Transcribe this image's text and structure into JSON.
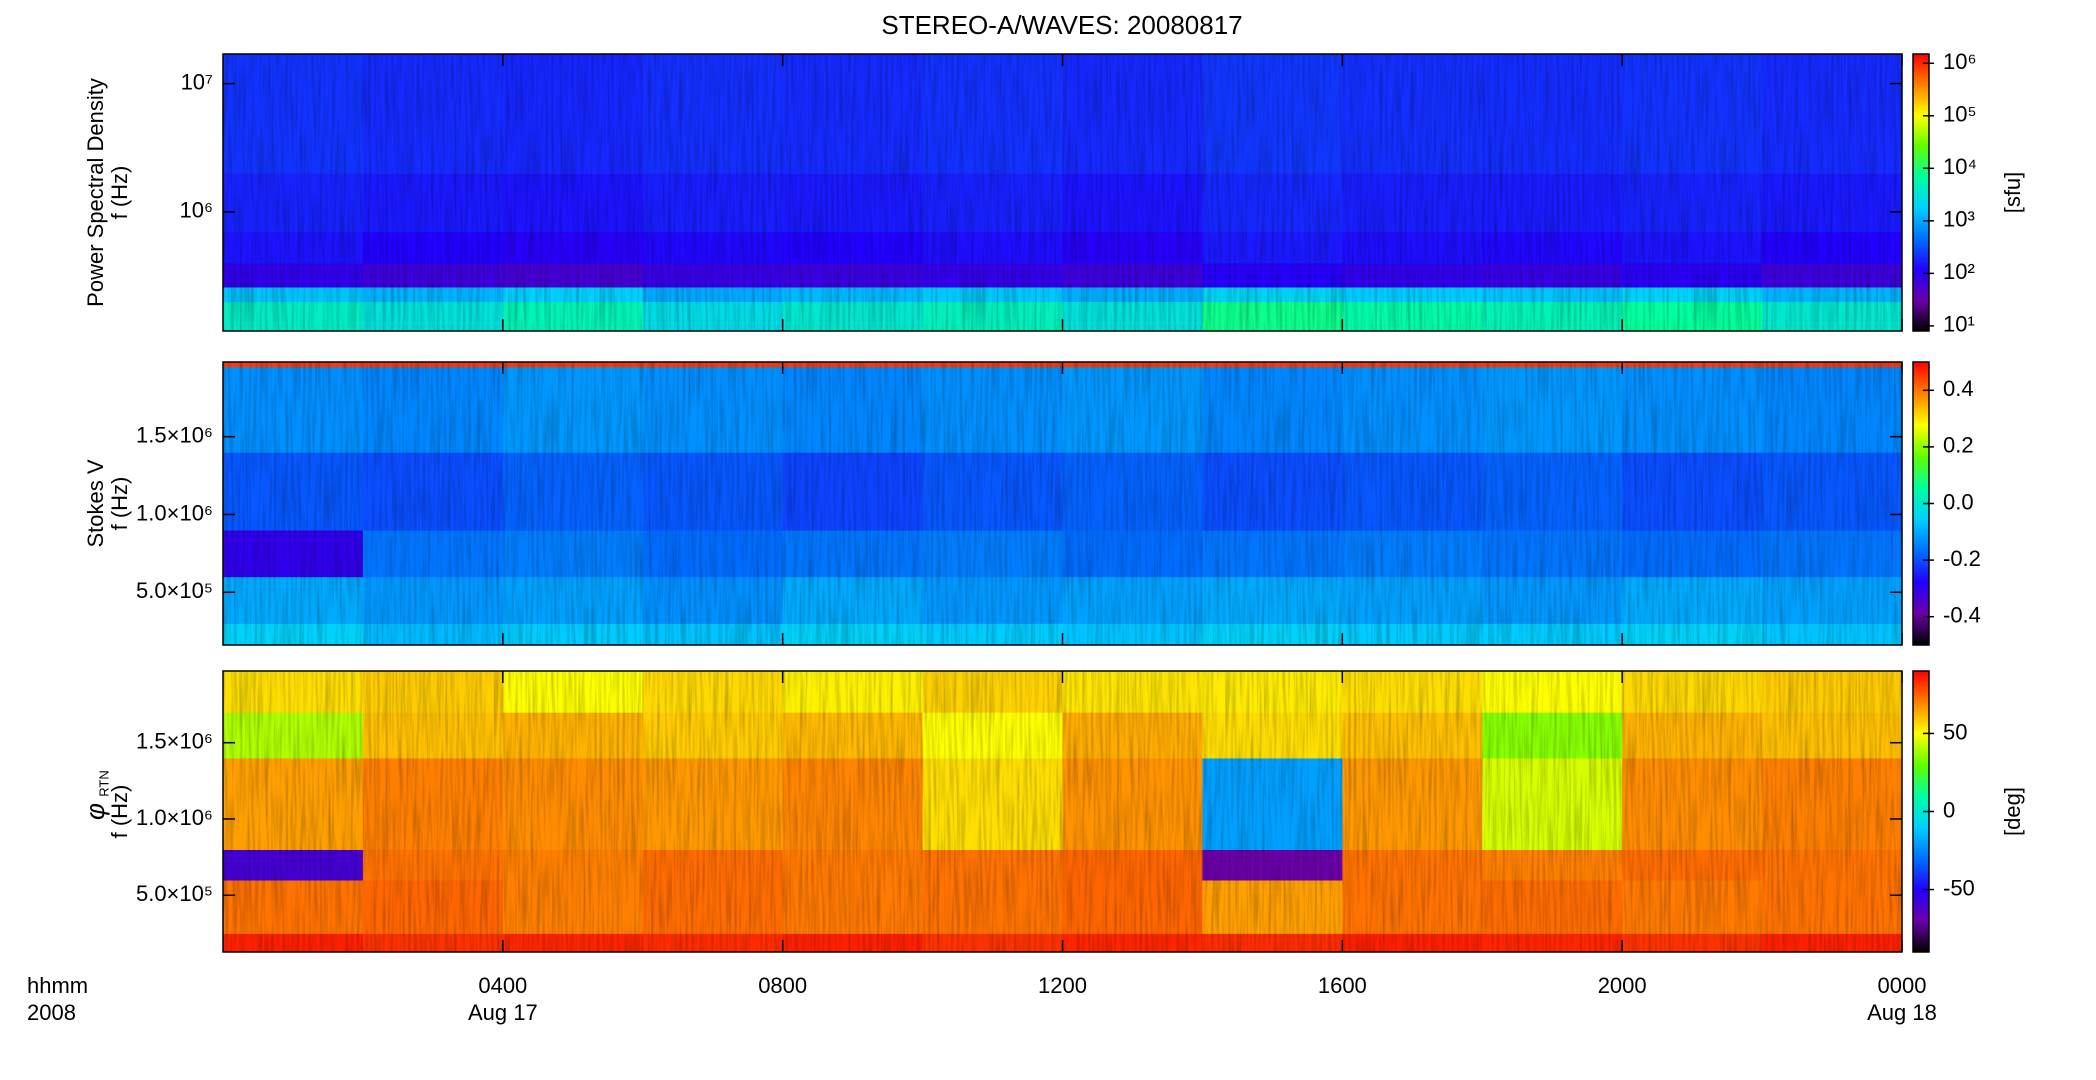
{
  "chart_data": [
    {
      "type": "heatmap",
      "title": "STEREO-A/WAVES: 20080817",
      "ylabel": [
        "Power Spectral Density",
        "f (Hz)"
      ],
      "xlim": [
        0,
        24
      ],
      "xticks": [
        4,
        8,
        12,
        16,
        20,
        24
      ],
      "yscale": "log",
      "ylim": [
        118000,
        17000000
      ],
      "yticks": [
        {
          "value": 1000000,
          "label": "10⁶"
        },
        {
          "value": 10000000,
          "label": "10⁷"
        }
      ],
      "xbins": [
        0,
        2,
        4,
        6,
        8,
        10,
        12,
        14,
        16,
        18,
        20,
        22,
        24
      ],
      "ybins": [
        118000,
        200000,
        260000,
        400000,
        700000,
        2000000,
        17000000
      ],
      "z": [
        [
          4000,
          3000,
          5000,
          2500,
          3500,
          4500,
          3000,
          8000,
          6000,
          5000,
          7000,
          3500
        ],
        [
          1500,
          1200,
          1800,
          1000,
          1300,
          1600,
          1100,
          2000,
          1700,
          1500,
          1900,
          1200
        ],
        [
          90,
          70,
          60,
          80,
          75,
          85,
          70,
          110,
          90,
          80,
          100,
          70
        ],
        [
          150,
          120,
          110,
          130,
          120,
          140,
          110,
          160,
          140,
          130,
          150,
          120
        ],
        [
          180,
          160,
          150,
          170,
          160,
          175,
          150,
          190,
          170,
          165,
          180,
          160
        ],
        [
          220,
          200,
          190,
          210,
          200,
          215,
          195,
          230,
          210,
          205,
          220,
          200
        ]
      ],
      "zscale": "log",
      "zlim": [
        8,
        1500000
      ],
      "zticks": [
        {
          "value": 10,
          "label": "10¹"
        },
        {
          "value": 100,
          "label": "10²"
        },
        {
          "value": 1000,
          "label": "10³"
        },
        {
          "value": 10000,
          "label": "10⁴"
        },
        {
          "value": 100000,
          "label": "10⁵"
        },
        {
          "value": 1000000,
          "label": "10⁶"
        }
      ],
      "zlabel": "[sfu]",
      "colormap": [
        "#000000",
        "#6a00a8",
        "#2200ff",
        "#0070ff",
        "#00d0ff",
        "#00ffa0",
        "#60ff00",
        "#ffff00",
        "#ff8000",
        "#ff0000"
      ]
    },
    {
      "type": "heatmap",
      "ylabel": [
        "Stokes V",
        "f (Hz)"
      ],
      "xlim": [
        0,
        24
      ],
      "xticks": [
        4,
        8,
        12,
        16,
        20,
        24
      ],
      "yscale": "linear",
      "ylim": [
        161000,
        1980000
      ],
      "yticks": [
        {
          "value": 500000,
          "label": "5.0×10⁵"
        },
        {
          "value": 1000000,
          "label": "1.0×10⁶"
        },
        {
          "value": 1500000,
          "label": "1.5×10⁶"
        }
      ],
      "xbins": [
        0,
        2,
        4,
        6,
        8,
        10,
        12,
        14,
        16,
        18,
        20,
        22,
        24
      ],
      "ybins": [
        161000,
        300000,
        600000,
        900000,
        1400000,
        1950000,
        1980000
      ],
      "z": [
        [
          -0.05,
          -0.08,
          -0.06,
          -0.07,
          -0.05,
          -0.06,
          -0.07,
          -0.05,
          -0.06,
          -0.06,
          -0.05,
          -0.07
        ],
        [
          -0.1,
          -0.12,
          -0.11,
          -0.13,
          -0.1,
          -0.12,
          -0.11,
          -0.1,
          -0.11,
          -0.12,
          -0.1,
          -0.11
        ],
        [
          -0.3,
          -0.16,
          -0.15,
          -0.17,
          -0.16,
          -0.15,
          -0.17,
          -0.16,
          -0.15,
          -0.16,
          -0.17,
          -0.16
        ],
        [
          -0.19,
          -0.2,
          -0.18,
          -0.19,
          -0.21,
          -0.19,
          -0.18,
          -0.2,
          -0.19,
          -0.18,
          -0.2,
          -0.19
        ],
        [
          -0.13,
          -0.14,
          -0.12,
          -0.13,
          -0.14,
          -0.13,
          -0.12,
          -0.14,
          -0.13,
          -0.12,
          -0.13,
          -0.14
        ],
        [
          0.45,
          0.45,
          0.45,
          0.45,
          0.45,
          0.45,
          0.45,
          0.45,
          0.45,
          0.45,
          0.45,
          0.45
        ]
      ],
      "zscale": "linear",
      "zlim": [
        -0.5,
        0.5
      ],
      "zticks": [
        -0.4,
        -0.2,
        {
          "value": 0,
          "label": "0.0"
        },
        0.2,
        0.4
      ],
      "colormap": [
        "#000000",
        "#6a00a8",
        "#2200ff",
        "#0070ff",
        "#00d0ff",
        "#00ffa0",
        "#60ff00",
        "#ffff00",
        "#ff8000",
        "#ff0000"
      ]
    },
    {
      "type": "heatmap",
      "ylabel": [
        "φ",
        "f (Hz)"
      ],
      "ylabel_subscript": "RTN",
      "xlim": [
        0,
        24
      ],
      "xticks": [
        {
          "value": 4,
          "label": "0400"
        },
        {
          "value": 8,
          "label": "0800"
        },
        {
          "value": 12,
          "label": "1200"
        },
        {
          "value": 16,
          "label": "1600"
        },
        {
          "value": 20,
          "label": "2000"
        },
        {
          "value": 24,
          "label": "0000"
        }
      ],
      "xtick_dates": [
        {
          "value": 4,
          "label": "Aug 17"
        },
        {
          "value": 24,
          "label": "Aug 18"
        }
      ],
      "xlabel": [
        "hhmm",
        "2008"
      ],
      "yscale": "linear",
      "ylim": [
        128000,
        1970000
      ],
      "yticks": [
        {
          "value": 500000,
          "label": "5.0×10⁵"
        },
        {
          "value": 1000000,
          "label": "1.0×10⁶"
        },
        {
          "value": 1500000,
          "label": "1.5×10⁶"
        }
      ],
      "xbins": [
        0,
        2,
        4,
        6,
        8,
        10,
        12,
        14,
        16,
        18,
        20,
        22,
        24
      ],
      "ybins": [
        128000,
        250000,
        600000,
        800000,
        1400000,
        1700000,
        1970000
      ],
      "z": [
        [
          85,
          82,
          84,
          83,
          85,
          82,
          84,
          83,
          85,
          84,
          82,
          85
        ],
        [
          72,
          74,
          70,
          73,
          71,
          72,
          74,
          65,
          72,
          73,
          71,
          72
        ],
        [
          -60,
          72,
          70,
          73,
          71,
          72,
          74,
          -70,
          72,
          70,
          73,
          72
        ],
        [
          65,
          70,
          68,
          66,
          69,
          55,
          67,
          -20,
          66,
          45,
          68,
          70
        ],
        [
          40,
          60,
          62,
          58,
          61,
          50,
          63,
          55,
          60,
          35,
          62,
          60
        ],
        [
          55,
          58,
          50,
          56,
          52,
          57,
          54,
          53,
          55,
          50,
          56,
          58
        ]
      ],
      "zscale": "linear",
      "zlim": [
        -90,
        90
      ],
      "zticks": [
        -50,
        0,
        50
      ],
      "zlabel": "[deg]",
      "colormap": [
        "#000000",
        "#6a00a8",
        "#2200ff",
        "#0070ff",
        "#00d0ff",
        "#00ffa0",
        "#60ff00",
        "#ffff00",
        "#ff8000",
        "#ff0000"
      ]
    }
  ]
}
